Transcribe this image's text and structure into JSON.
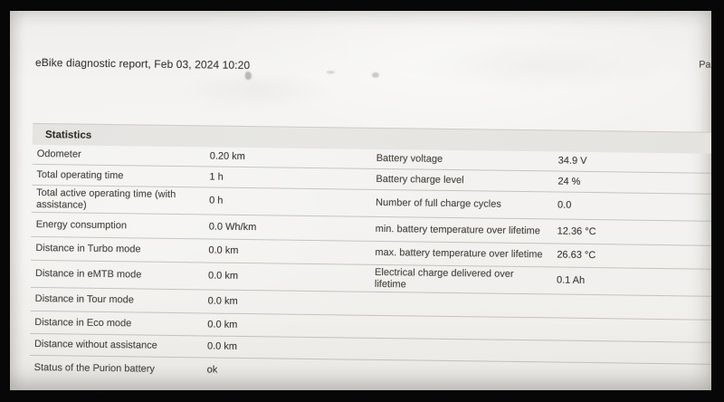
{
  "header": {
    "title": "eBike diagnostic report, Feb 03, 2024 10:20",
    "page_indicator": "Pa"
  },
  "section": {
    "title": "Statistics"
  },
  "table": {
    "rows": [
      {
        "l1": "Odometer",
        "v1": "0.20 km",
        "l2": "Battery voltage",
        "v2": "34.9 V"
      },
      {
        "l1": "Total operating time",
        "v1": "1 h",
        "l2": "Battery charge level",
        "v2": "24 %"
      },
      {
        "l1": "Total active operating time (with assistance)",
        "v1": "0 h",
        "l2": "Number of full charge cycles",
        "v2": "0.0"
      },
      {
        "l1": "Energy consumption",
        "v1": "0.0 Wh/km",
        "l2": "min. battery temperature over lifetime",
        "v2": "12.36 °C"
      },
      {
        "l1": "Distance in Turbo mode",
        "v1": "0.0 km",
        "l2": "max. battery temperature over lifetime",
        "v2": "26.63 °C"
      },
      {
        "l1": "Distance in eMTB mode",
        "v1": "0.0 km",
        "l2": "Electrical charge delivered over lifetime",
        "v2": "0.1 Ah"
      },
      {
        "l1": "Distance in Tour mode",
        "v1": "0.0 km",
        "l2": "",
        "v2": ""
      },
      {
        "l1": "Distance in Eco mode",
        "v1": "0.0 km",
        "l2": "",
        "v2": ""
      },
      {
        "l1": "Distance without assistance",
        "v1": "0.0 km",
        "l2": "",
        "v2": ""
      },
      {
        "l1": "Status of the Purion battery",
        "v1": "ok",
        "l2": "",
        "v2": ""
      }
    ]
  },
  "colors": {
    "frame_background": "#070707",
    "paper": "#f3f2f0",
    "section_band": "#e5e4e1",
    "text": "#47473f",
    "separator_line": "#94928a"
  }
}
